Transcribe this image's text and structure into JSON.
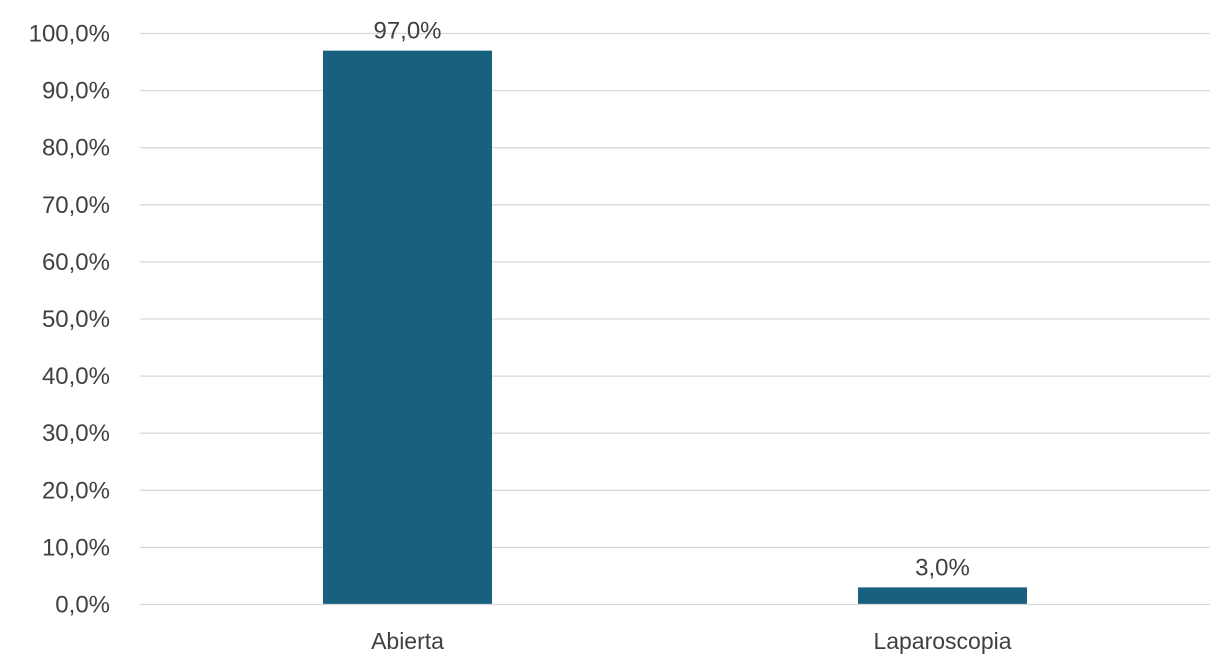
{
  "chart_data": {
    "type": "bar",
    "categories": [
      "Abierta",
      "Laparoscopia"
    ],
    "values": [
      97.0,
      3.0
    ],
    "data_labels": [
      "97,0%",
      "3,0%"
    ],
    "title": "",
    "xlabel": "",
    "ylabel": "",
    "ylim": [
      0,
      100
    ],
    "y_ticks": [
      0,
      10,
      20,
      30,
      40,
      50,
      60,
      70,
      80,
      90,
      100
    ],
    "y_tick_labels": [
      "0,0%",
      "10,0%",
      "20,0%",
      "30,0%",
      "40,0%",
      "50,0%",
      "60,0%",
      "70,0%",
      "80,0%",
      "90,0%",
      "100,0%"
    ],
    "grid": true,
    "legend": "none",
    "bar_color": "#17607f"
  }
}
